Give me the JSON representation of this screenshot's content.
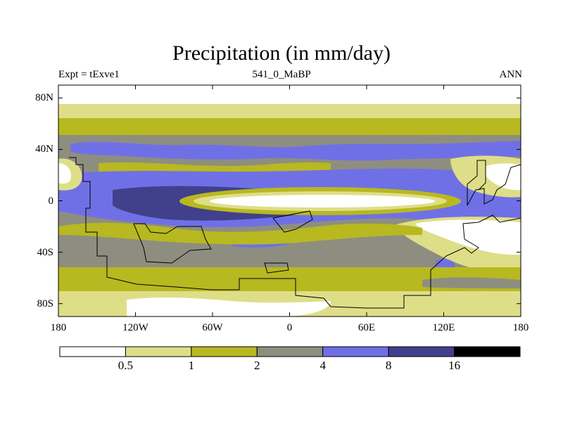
{
  "chart_data": {
    "type": "heatmap",
    "title": "Precipitation (in mm/day)",
    "subtitle_left": "Expt = tExve1",
    "subtitle_center": "541_0_MaBP",
    "subtitle_right": "ANN",
    "x_axis": {
      "range": [
        -180,
        180
      ],
      "ticks": [
        {
          "value": -180,
          "label": "180"
        },
        {
          "value": -120,
          "label": "120W"
        },
        {
          "value": -60,
          "label": "60W"
        },
        {
          "value": 0,
          "label": "0"
        },
        {
          "value": 60,
          "label": "60E"
        },
        {
          "value": 120,
          "label": "120E"
        },
        {
          "value": 180,
          "label": "180"
        }
      ]
    },
    "y_axis": {
      "range": [
        -90,
        90
      ],
      "ticks": [
        {
          "value": 80,
          "label": "80N"
        },
        {
          "value": 40,
          "label": "40N"
        },
        {
          "value": 0,
          "label": "0"
        },
        {
          "value": -40,
          "label": "40S"
        },
        {
          "value": -80,
          "label": "80S"
        }
      ]
    },
    "colorbar": {
      "levels": [
        "0.5",
        "1",
        "2",
        "4",
        "8",
        "16"
      ],
      "colors": [
        "#ffffff",
        "#dede88",
        "#b8b820",
        "#8e8e80",
        "#7070e6",
        "#40408c",
        "#000000"
      ]
    }
  }
}
